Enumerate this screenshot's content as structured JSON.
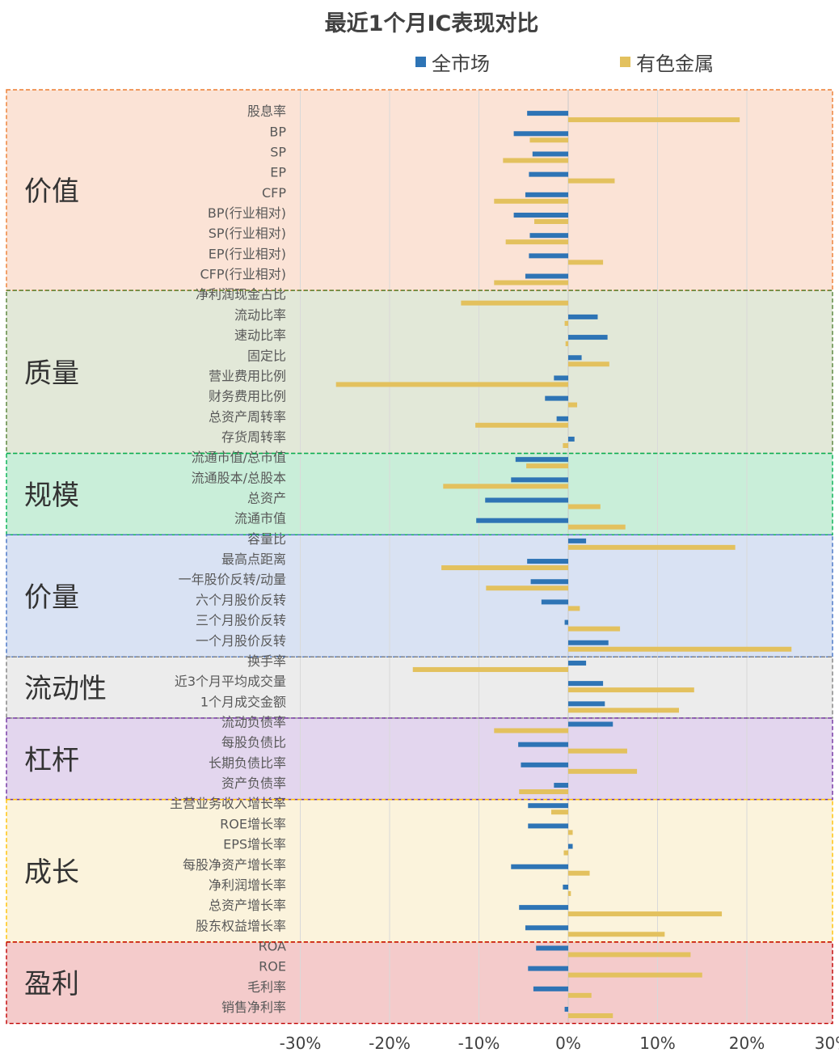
{
  "chart_data": {
    "type": "bar",
    "orientation": "horizontal",
    "title": "最近1个月IC表现对比",
    "legend_position": "top",
    "xlim": [
      -0.3,
      0.3
    ],
    "x_ticks": [
      -0.3,
      -0.2,
      -0.1,
      0.0,
      0.1,
      0.2,
      0.3
    ],
    "x_tick_labels": [
      "-30%",
      "-20%",
      "-10%",
      "0%",
      "10%",
      "20%",
      "30%"
    ],
    "grid": true,
    "series": [
      {
        "name": "全市场",
        "color": "#2e74b5"
      },
      {
        "name": "有色金属",
        "color": "#e3c15e"
      }
    ],
    "groups": [
      {
        "name": "价值",
        "fill": "#fbe3d6",
        "border": "#ed7d31",
        "categories": [
          {
            "label": "股息率",
            "values": [
              -0.046,
              0.192
            ]
          },
          {
            "label": "BP",
            "values": [
              -0.061,
              -0.043
            ]
          },
          {
            "label": "SP",
            "values": [
              -0.04,
              -0.073
            ]
          },
          {
            "label": "EP",
            "values": [
              -0.044,
              0.052
            ]
          },
          {
            "label": "CFP",
            "values": [
              -0.048,
              -0.083
            ]
          },
          {
            "label": "BP(行业相对)",
            "values": [
              -0.061,
              -0.038
            ]
          },
          {
            "label": "SP(行业相对)",
            "values": [
              -0.043,
              -0.07
            ]
          },
          {
            "label": "EP(行业相对)",
            "values": [
              -0.044,
              0.039
            ]
          },
          {
            "label": "CFP(行业相对)",
            "values": [
              -0.048,
              -0.083
            ]
          }
        ]
      },
      {
        "name": "质量",
        "fill": "#e2e8d8",
        "border": "#548235",
        "categories": [
          {
            "label": "净利润现金占比",
            "values": [
              0.0,
              -0.12
            ]
          },
          {
            "label": "流动比率",
            "values": [
              0.033,
              -0.004
            ]
          },
          {
            "label": "速动比率",
            "values": [
              0.044,
              -0.003
            ]
          },
          {
            "label": "固定比",
            "values": [
              0.015,
              0.046
            ]
          },
          {
            "label": "营业费用比例",
            "values": [
              -0.016,
              -0.26
            ]
          },
          {
            "label": "财务费用比例",
            "values": [
              -0.026,
              0.01
            ]
          },
          {
            "label": "总资产周转率",
            "values": [
              -0.013,
              -0.104
            ]
          },
          {
            "label": "存货周转率",
            "values": [
              0.007,
              -0.006
            ]
          }
        ]
      },
      {
        "name": "规模",
        "fill": "#c9eed9",
        "border": "#00b050",
        "categories": [
          {
            "label": "流通市值/总市值",
            "values": [
              -0.059,
              -0.047
            ]
          },
          {
            "label": "流通股本/总股本",
            "values": [
              -0.064,
              -0.14
            ]
          },
          {
            "label": "总资产",
            "values": [
              -0.093,
              0.036
            ]
          },
          {
            "label": "流通市值",
            "values": [
              -0.103,
              0.064
            ]
          }
        ]
      },
      {
        "name": "价量",
        "fill": "#d9e2f3",
        "border": "#4472c4",
        "categories": [
          {
            "label": "容量比",
            "values": [
              0.02,
              0.187
            ]
          },
          {
            "label": "最高点距离",
            "values": [
              -0.046,
              -0.142
            ]
          },
          {
            "label": "一年股价反转/动量",
            "values": [
              -0.042,
              -0.092
            ]
          },
          {
            "label": "六个月股价反转",
            "values": [
              -0.03,
              0.013
            ]
          },
          {
            "label": "三个月股价反转",
            "values": [
              -0.004,
              0.058
            ]
          },
          {
            "label": "一个月股价反转",
            "values": [
              0.045,
              0.25
            ]
          }
        ]
      },
      {
        "name": "流动性",
        "fill": "#ececec",
        "border": "#7f7f7f",
        "categories": [
          {
            "label": "换手率",
            "values": [
              0.02,
              -0.174
            ]
          },
          {
            "label": "近3个月平均成交量",
            "values": [
              0.039,
              0.141
            ]
          },
          {
            "label": "1个月成交金额",
            "values": [
              0.041,
              0.124
            ]
          }
        ]
      },
      {
        "name": "杠杆",
        "fill": "#e3d6ee",
        "border": "#7030a0",
        "categories": [
          {
            "label": "流动负债率",
            "values": [
              0.05,
              -0.083
            ]
          },
          {
            "label": "每股负债比",
            "values": [
              -0.056,
              0.066
            ]
          },
          {
            "label": "长期负债比率",
            "values": [
              -0.053,
              0.077
            ]
          },
          {
            "label": "资产负债率",
            "values": [
              -0.016,
              -0.055
            ]
          }
        ]
      },
      {
        "name": "成长",
        "fill": "#fbf3dc",
        "border": "#ffc000",
        "categories": [
          {
            "label": "主营业务收入增长率",
            "values": [
              -0.045,
              -0.019
            ]
          },
          {
            "label": "ROE增长率",
            "values": [
              -0.045,
              0.005
            ]
          },
          {
            "label": "EPS增长率",
            "values": [
              0.005,
              -0.005
            ]
          },
          {
            "label": "每股净资产增长率",
            "values": [
              -0.064,
              0.024
            ]
          },
          {
            "label": "净利润增长率",
            "values": [
              -0.006,
              0.003
            ]
          },
          {
            "label": "总资产增长率",
            "values": [
              -0.055,
              0.172
            ]
          },
          {
            "label": "股东权益增长率",
            "values": [
              -0.048,
              0.108
            ]
          }
        ]
      },
      {
        "name": "盈利",
        "fill": "#f4cbcb",
        "border": "#c00000",
        "categories": [
          {
            "label": "ROA",
            "values": [
              -0.036,
              0.137
            ]
          },
          {
            "label": "ROE",
            "values": [
              -0.045,
              0.15
            ]
          },
          {
            "label": "毛利率",
            "values": [
              -0.039,
              0.026
            ]
          },
          {
            "label": "销售净利率",
            "values": [
              -0.004,
              0.05
            ]
          }
        ]
      }
    ]
  }
}
